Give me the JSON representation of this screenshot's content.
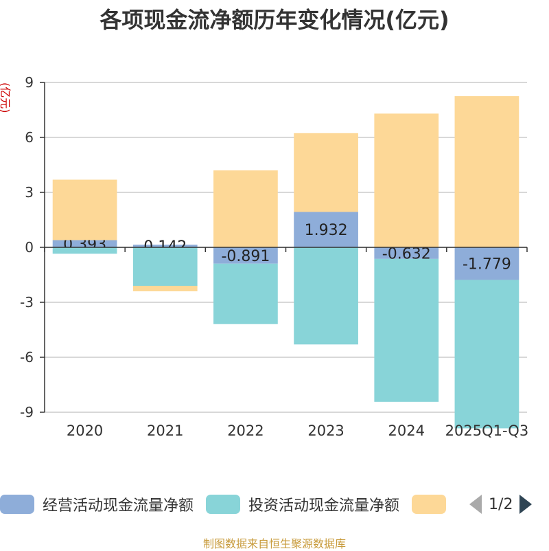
{
  "chart_data": {
    "type": "bar",
    "stacked": true,
    "title": "各项现金流净额历年变化情况(亿元)",
    "ylabel": "(亿元)",
    "xlabel": "",
    "ylim": [
      -9,
      9
    ],
    "yticks": [
      9,
      6,
      3,
      0,
      -3,
      -6,
      -9
    ],
    "categories": [
      "2020",
      "2021",
      "2022",
      "2023",
      "2024",
      "2025Q1-Q3"
    ],
    "series": [
      {
        "name": "经营活动现金流量净额",
        "color": "#8eadd9",
        "values": [
          0.393,
          0.142,
          -0.891,
          1.932,
          -0.632,
          -1.779
        ],
        "labels": [
          "0.393",
          "0.142",
          "-0.891",
          "1.932",
          "-0.632",
          "-1.779"
        ]
      },
      {
        "name": "投资活动现金流量净额",
        "color": "#88d4d8",
        "values": [
          -0.35,
          -2.1,
          -3.3,
          -5.3,
          -7.8,
          -8.1
        ]
      },
      {
        "name": "",
        "color": "#fdd897",
        "values": [
          3.3,
          -0.3,
          4.2,
          4.3,
          7.3,
          8.25
        ]
      }
    ]
  },
  "legend": {
    "items": [
      {
        "label": "经营活动现金流量净额",
        "color": "#8eadd9"
      },
      {
        "label": "投资活动现金流量净额",
        "color": "#88d4d8"
      },
      {
        "label": "",
        "color": "#fdd897"
      }
    ],
    "page": "1/2"
  },
  "source": "制图数据来自恒生聚源数据库"
}
